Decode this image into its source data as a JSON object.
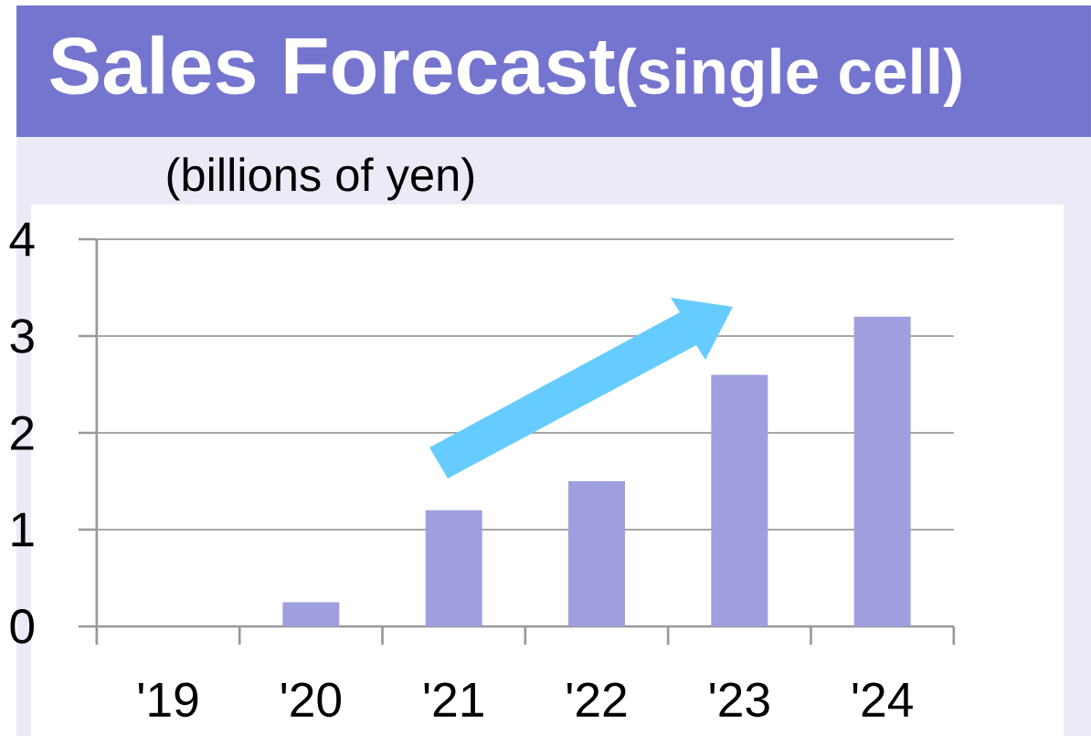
{
  "chart_data": {
    "type": "bar",
    "title": "Sales Forecast",
    "subtitle": "(single cell)",
    "ylabel": "(billions of yen)",
    "categories": [
      "'19",
      "'20",
      "'21",
      "'22",
      "'23",
      "'24"
    ],
    "values": [
      0,
      0.25,
      1.2,
      1.5,
      2.6,
      3.2
    ],
    "color": "#9f9fdf",
    "ylim": [
      0,
      4
    ],
    "yticks": [
      0,
      1,
      2,
      3,
      4
    ],
    "grid": "y"
  }
}
